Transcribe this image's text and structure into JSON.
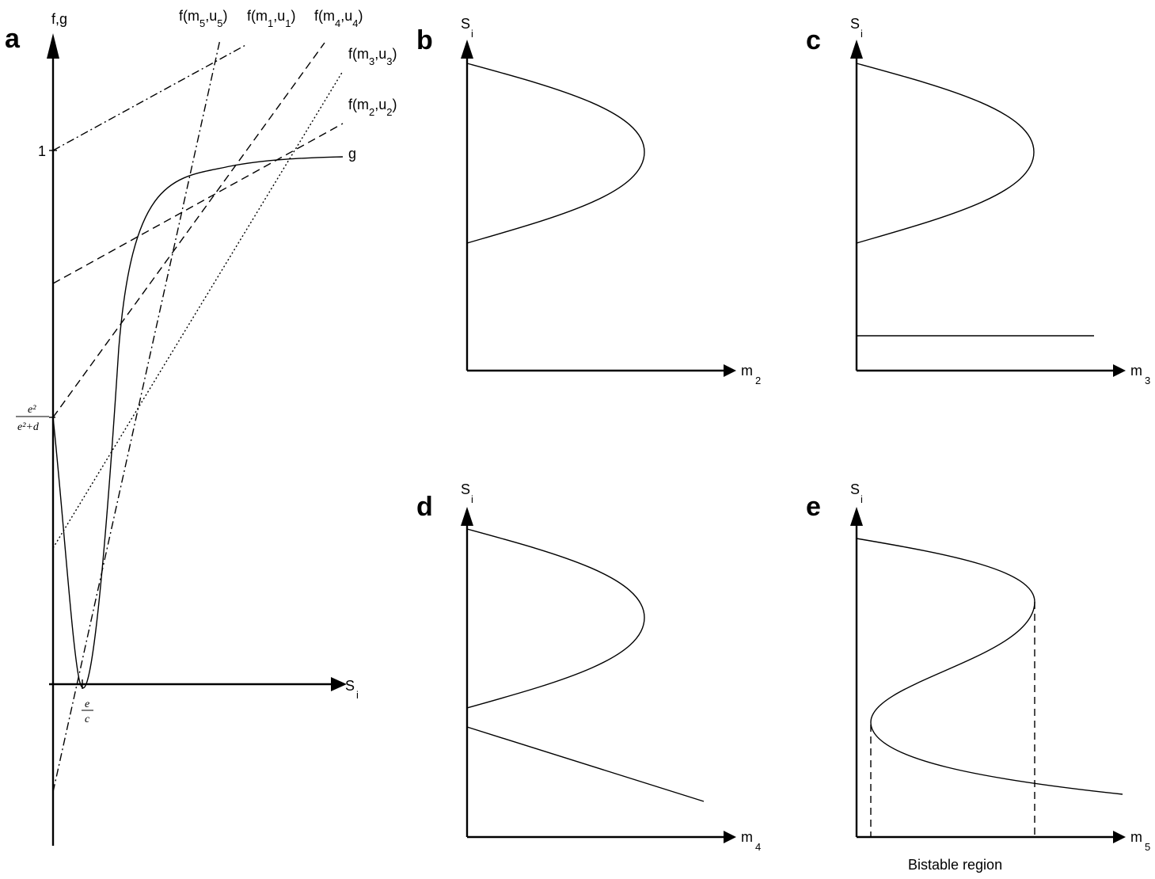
{
  "panels": {
    "a": {
      "label": "a",
      "y_axis": "f,g",
      "x_axis_main": "S",
      "x_axis_sub": "i",
      "tick_one": "1",
      "tick_frac_num": "e²",
      "tick_frac_den": "e²+d",
      "tick_x_num": "e",
      "tick_x_den": "c",
      "curve_g": "g",
      "lines": [
        {
          "pre": "f(m",
          "s1": "5",
          "mid": ",u",
          "s2": "5",
          "post": ")"
        },
        {
          "pre": "f(m",
          "s1": "1",
          "mid": ",u",
          "s2": "1",
          "post": ")"
        },
        {
          "pre": "f(m",
          "s1": "4",
          "mid": ",u",
          "s2": "4",
          "post": ")"
        },
        {
          "pre": "f(m",
          "s1": "3",
          "mid": ",u",
          "s2": "3",
          "post": ")"
        },
        {
          "pre": "f(m",
          "s1": "2",
          "mid": ",u",
          "s2": "2",
          "post": ")"
        }
      ]
    },
    "b": {
      "label": "b",
      "y_main": "S",
      "y_sub": "i",
      "x_main": "m",
      "x_sub": "2"
    },
    "c": {
      "label": "c",
      "y_main": "S",
      "y_sub": "i",
      "x_main": "m",
      "x_sub": "3"
    },
    "d": {
      "label": "d",
      "y_main": "S",
      "y_sub": "i",
      "x_main": "m",
      "x_sub": "4"
    },
    "e": {
      "label": "e",
      "y_main": "S",
      "y_sub": "i",
      "x_main": "m",
      "x_sub": "5",
      "region": "Bistable region"
    }
  }
}
